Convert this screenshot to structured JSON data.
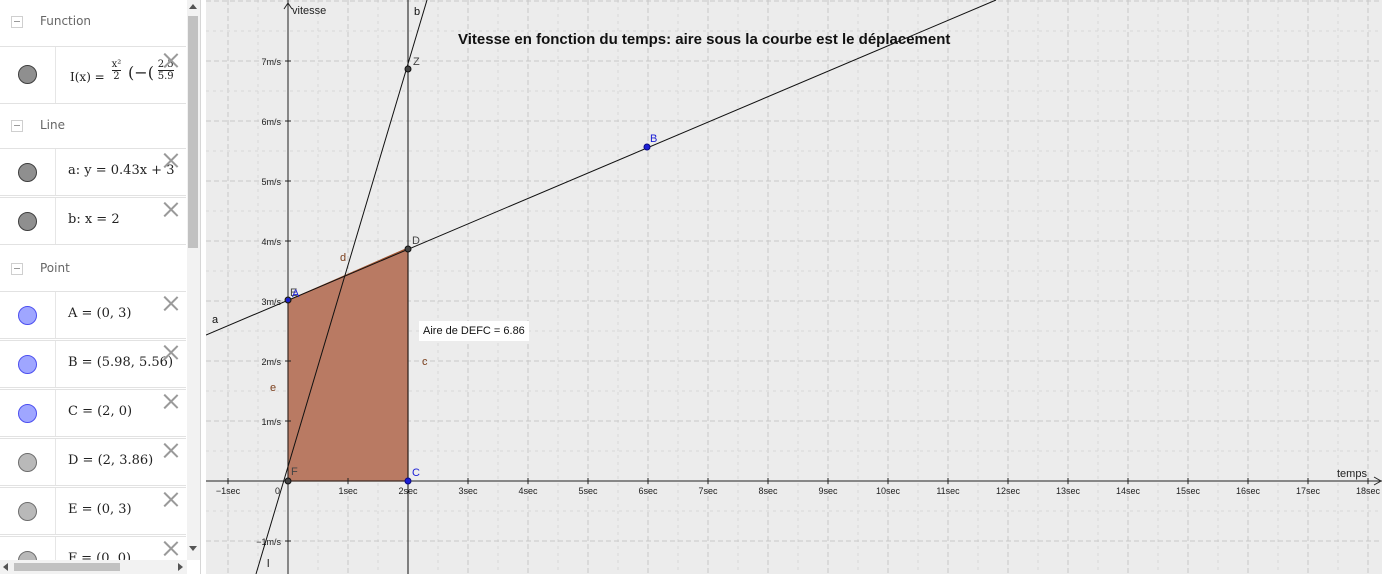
{
  "algebra": {
    "groups": {
      "function": "Function",
      "line": "Line",
      "point": "Point"
    },
    "rows": {
      "f": {
        "pre": "I(x) = ",
        "num": "x²",
        "den": "2",
        "rest": "(−(",
        "frac_top": "2.5",
        "frac_bot": "5.9"
      },
      "a": "a: y = 0.43x + 3",
      "b": "b: x = 2",
      "A": "A = (0, 3)",
      "B": "B = (5.98, 5.56)",
      "C": "C = (2, 0)",
      "D": "D = (2, 3.86)",
      "E": "E = (0, 3)",
      "F": "F = (0, 0)"
    }
  },
  "graphics": {
    "title": "Vitesse en fonction du temps: aire sous la courbe est le déplacement",
    "area_text": "Aire de  DEFC = 6.86",
    "x_axis_label": "temps",
    "y_axis_label": "vitesse",
    "x_origin_label": "0",
    "x_ticks": [
      "−1sec",
      "1sec",
      "2sec",
      "3sec",
      "4sec",
      "5sec",
      "6sec",
      "7sec",
      "8sec",
      "9sec",
      "10sec",
      "11sec",
      "12sec",
      "13sec",
      "14sec",
      "15sec",
      "16sec",
      "17sec",
      "18sec"
    ],
    "y_ticks": [
      "−1m/s",
      "1m/s",
      "2m/s",
      "3m/s",
      "4m/s",
      "5m/s",
      "6m/s",
      "7m/s"
    ],
    "labels": {
      "a": "a",
      "b": "b",
      "c": "c",
      "d": "d",
      "e": "e",
      "l": "l",
      "A": "A",
      "B": "B",
      "C": "C",
      "D": "D",
      "E": "E",
      "F": "F",
      "Z": "Z"
    },
    "colors": {
      "polygon_fill": "#b97a63",
      "polygon_stroke": "#a0522d",
      "point_blue": "#1c20d6",
      "label_brown": "#7b3f1c"
    }
  }
}
